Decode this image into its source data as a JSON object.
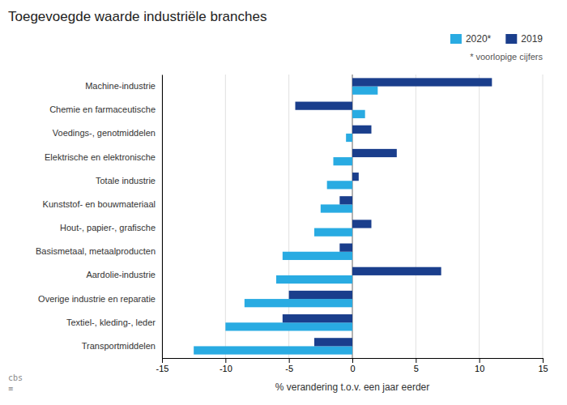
{
  "chart_data": {
    "type": "bar",
    "orientation": "horizontal",
    "title": "Toegevoegde waarde industriële branches",
    "xlabel": "% verandering t.o.v. een jaar eerder",
    "annotations": [
      "* voorlopige cijfers",
      "cbs\n≡"
    ],
    "categories": [
      "Machine-industrie",
      "Chemie en farmaceutische",
      "Voedings-, genotmiddelen",
      "Elektrische en elektronische",
      "Totale industrie",
      "Kunststof- en bouwmateriaal",
      "Hout-, papier-, grafische",
      "Basismetaal, metaalproducten",
      "Aardolie-industrie",
      "Overige industrie en reparatie",
      "Textiel-, kleding-, leder",
      "Transportmiddelen"
    ],
    "series": [
      {
        "name": "2020*",
        "color": "#29ABE2",
        "values": [
          2.0,
          1.0,
          -0.5,
          -1.5,
          -2.0,
          -2.5,
          -3.0,
          -5.5,
          -6.0,
          -8.5,
          -10.0,
          -12.5
        ]
      },
      {
        "name": "2019",
        "color": "#1A3E8C",
        "values": [
          11.0,
          -4.5,
          1.5,
          3.5,
          0.5,
          -1.0,
          1.5,
          -1.0,
          7.0,
          -5.0,
          -5.5,
          -3.0
        ]
      }
    ],
    "xlim": [
      -15,
      15
    ],
    "xticks": [
      -15,
      -10,
      -5,
      0,
      5,
      10,
      15
    ],
    "grid": true,
    "legend": "top-right"
  }
}
